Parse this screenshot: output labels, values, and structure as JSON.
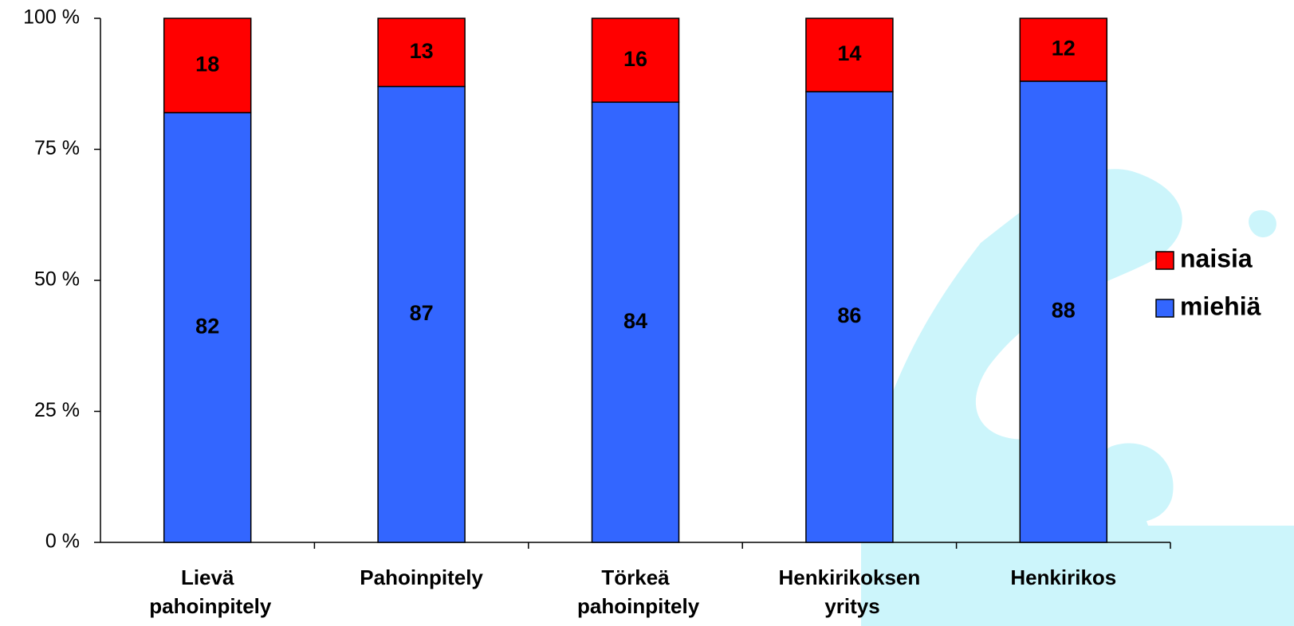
{
  "chart_data": {
    "type": "stacked-bar",
    "categories": [
      "Lievä pahoinpitely",
      "Pahoinpitely",
      "Törkeä pahoinpitely",
      "Henkirikoksen yritys",
      "Henkirikos"
    ],
    "series": [
      {
        "name": "miehiä",
        "color": "#3366ff",
        "values": [
          82,
          87,
          84,
          86,
          88
        ]
      },
      {
        "name": "naisia",
        "color": "#ff0000",
        "values": [
          18,
          13,
          16,
          14,
          12
        ]
      }
    ],
    "ylim": [
      0,
      100
    ],
    "yticks": [
      {
        "value": 0,
        "label": "0 %"
      },
      {
        "value": 25,
        "label": "25 %"
      },
      {
        "value": 50,
        "label": "50 %"
      },
      {
        "value": 75,
        "label": "75 %"
      },
      {
        "value": 100,
        "label": "100 %"
      }
    ],
    "legend": "right"
  }
}
